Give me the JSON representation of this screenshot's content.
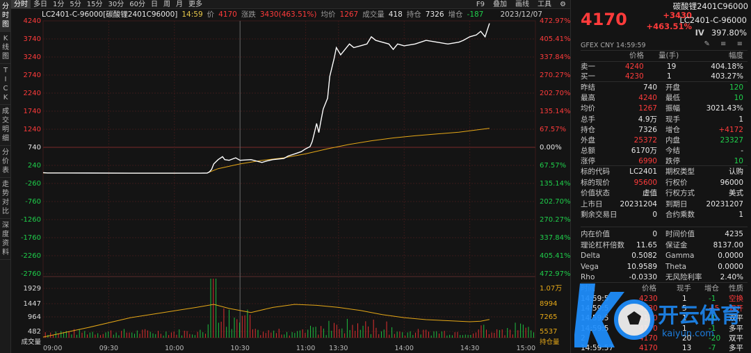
{
  "left_bar": [
    "分时图",
    "K线图",
    "TICK",
    "成交明细",
    "分价表",
    "走势对比",
    "深度资料"
  ],
  "top_bar": {
    "periods": [
      "分时",
      "多日",
      "1分",
      "5分",
      "15分",
      "30分",
      "60分",
      "日",
      "周",
      "月",
      "更多"
    ],
    "active": "分时",
    "right_items": [
      "F9",
      "叠加",
      "画线",
      "工具",
      "⚙"
    ]
  },
  "info_line": {
    "name": "LC2401-C-96000[碳酸锂2401C96000]",
    "time": "14:59",
    "price_label": "价",
    "price": "4170",
    "change_label": "涨跌",
    "change": "3430(463.51%)",
    "avg_label": "均价",
    "avg": "1267",
    "volume_label": "成交量",
    "volume": "418",
    "oi_label": "持仓",
    "oi": "7326",
    "oi_chg_label": "增仓",
    "oi_chg": "-187",
    "date": "2023/12/07"
  },
  "chart_data": {
    "type": "line",
    "price_axis_left": [
      "4240",
      "3740",
      "3240",
      "2740",
      "2240",
      "1740",
      "1240",
      "740",
      "240",
      "-260",
      "-760",
      "-1260",
      "-1760",
      "-2260",
      "-2760"
    ],
    "price_axis_right": [
      "472.97%",
      "405.41%",
      "337.84%",
      "270.27%",
      "202.70%",
      "135.14%",
      "67.57%",
      "0.00%",
      "67.57%",
      "135.14%",
      "202.70%",
      "270.27%",
      "337.84%",
      "405.41%",
      "472.97%"
    ],
    "price_axis_right_colors": [
      "red",
      "red",
      "red",
      "red",
      "red",
      "red",
      "red",
      "white",
      "green",
      "green",
      "green",
      "green",
      "green",
      "green",
      "green"
    ],
    "volume_axis_left": [
      "1929",
      "1447",
      "964",
      "482"
    ],
    "volume_axis_left_label": "成交量",
    "volume_axis_right": [
      "1.07万",
      "8994",
      "7265",
      "5537"
    ],
    "volume_axis_right_label": "持仓量",
    "time_labels": [
      "09:00",
      "09:30",
      "10:00",
      "10:30",
      "11:00",
      "13:30",
      "14:00",
      "14:30",
      "15:00"
    ],
    "ylim": [
      -2760,
      4240
    ],
    "prev_close": 740,
    "price_series": [
      [
        0,
        40
      ],
      [
        2,
        30
      ],
      [
        10,
        30
      ],
      [
        40,
        25
      ],
      [
        60,
        25
      ],
      [
        70,
        25
      ],
      [
        72,
        25
      ],
      [
        75,
        28
      ],
      [
        76,
        60
      ],
      [
        77,
        130
      ],
      [
        78,
        280
      ],
      [
        80,
        400
      ],
      [
        82,
        480
      ],
      [
        83,
        400
      ],
      [
        85,
        380
      ],
      [
        88,
        450
      ],
      [
        90,
        380
      ],
      [
        95,
        400
      ],
      [
        100,
        320
      ],
      [
        102,
        360
      ],
      [
        105,
        400
      ],
      [
        110,
        430
      ],
      [
        112,
        500
      ],
      [
        115,
        560
      ],
      [
        118,
        620
      ],
      [
        120,
        700
      ],
      [
        122,
        760
      ],
      [
        123,
        900
      ],
      [
        124,
        1150
      ],
      [
        125,
        1400
      ],
      [
        126,
        1150
      ],
      [
        127,
        1480
      ],
      [
        128,
        1800
      ],
      [
        130,
        2100
      ],
      [
        131,
        2700
      ],
      [
        133,
        3200
      ],
      [
        134,
        3500
      ],
      [
        136,
        3300
      ],
      [
        138,
        3450
      ],
      [
        140,
        3600
      ],
      [
        142,
        3500
      ],
      [
        145,
        3550
      ],
      [
        148,
        3600
      ],
      [
        150,
        3800
      ],
      [
        152,
        3700
      ],
      [
        155,
        3650
      ],
      [
        158,
        3600
      ],
      [
        160,
        3450
      ],
      [
        162,
        3600
      ],
      [
        165,
        3550
      ],
      [
        170,
        3600
      ],
      [
        175,
        3700
      ],
      [
        180,
        3650
      ],
      [
        185,
        3600
      ],
      [
        190,
        3650
      ],
      [
        192,
        3700
      ],
      [
        195,
        3800
      ],
      [
        198,
        3850
      ],
      [
        200,
        3950
      ],
      [
        202,
        3800
      ],
      [
        204,
        4170
      ]
    ],
    "avg_series": [
      [
        0,
        30
      ],
      [
        60,
        25
      ],
      [
        75,
        30
      ],
      [
        80,
        150
      ],
      [
        90,
        280
      ],
      [
        100,
        380
      ],
      [
        110,
        450
      ],
      [
        120,
        560
      ],
      [
        130,
        700
      ],
      [
        140,
        820
      ],
      [
        150,
        920
      ],
      [
        160,
        1000
      ],
      [
        170,
        1060
      ],
      [
        180,
        1110
      ],
      [
        190,
        1160
      ],
      [
        204,
        1267
      ]
    ],
    "oi_series": [
      [
        0,
        5600
      ],
      [
        20,
        6500
      ],
      [
        40,
        7500
      ],
      [
        55,
        8000
      ],
      [
        70,
        8500
      ],
      [
        78,
        8800
      ],
      [
        85,
        8400
      ],
      [
        95,
        8000
      ],
      [
        105,
        8500
      ],
      [
        115,
        8800
      ],
      [
        125,
        8700
      ],
      [
        135,
        8500
      ],
      [
        145,
        8200
      ],
      [
        155,
        7800
      ],
      [
        165,
        7500
      ],
      [
        175,
        7300
      ],
      [
        185,
        7200
      ],
      [
        195,
        7100
      ],
      [
        200,
        7150
      ],
      [
        204,
        7326
      ]
    ],
    "colors": {
      "price": "#ffffff",
      "avg": "#e6a817",
      "oi": "#e6a817"
    }
  },
  "quote": {
    "title": "碳酸锂2401C96000",
    "price": "4170",
    "change": "+3430",
    "change_pct": "+463.51%",
    "code": "LC2401-C-96000",
    "iv_label": "IV",
    "iv": "397.80%",
    "sub": "GFEX CNY 14:59:59",
    "sub_icons": "✎ ≡ ≡",
    "book_headers": [
      "价格",
      "量(手)",
      "幅度"
    ],
    "book": [
      {
        "label": "卖一",
        "price": "4240",
        "qty": "19",
        "pct": "404.18%"
      },
      {
        "label": "买一",
        "price": "4230",
        "qty": "1",
        "pct": "403.27%"
      }
    ],
    "stats": [
      [
        "昨结",
        "740",
        "white",
        "开盘",
        "120",
        "green"
      ],
      [
        "最高",
        "4240",
        "red",
        "最低",
        "10",
        "green"
      ],
      [
        "均价",
        "1267",
        "red",
        "振幅",
        "3021.43%",
        "white"
      ],
      [
        "总手",
        "4.9万",
        "white",
        "现手",
        "1",
        "white"
      ],
      [
        "持仓",
        "7326",
        "white",
        "增仓",
        "+4172",
        "red"
      ],
      [
        "外盘",
        "25372",
        "red",
        "内盘",
        "23327",
        "green"
      ],
      [
        "总额",
        "6170万",
        "white",
        "今结",
        "-",
        "white"
      ],
      [
        "涨停",
        "6990",
        "red",
        "跌停",
        "10",
        "green"
      ]
    ],
    "contract": [
      [
        "标的代码",
        "LC2401",
        "white",
        "期权类型",
        "认购",
        "white"
      ],
      [
        "标的现价",
        "95600",
        "red",
        "行权价",
        "96000",
        "white"
      ],
      [
        "价值状态",
        "虚值",
        "white",
        "行权方式",
        "美式",
        "white"
      ],
      [
        "上市日",
        "20231204",
        "white",
        "到期日",
        "20231207",
        "white"
      ],
      [
        "剩余交易日",
        "0",
        "white",
        "合约乘数",
        "1",
        "white"
      ]
    ],
    "greeks": [
      [
        "内在价值",
        "0",
        "white",
        "时间价值",
        "4235",
        "white"
      ],
      [
        "理论杠杆倍数",
        "11.65",
        "white",
        "保证金",
        "8137.00",
        "white"
      ],
      [
        "Delta",
        "0.5082",
        "white",
        "Gamma",
        "0.0000",
        "white"
      ],
      [
        "Vega",
        "10.9589",
        "white",
        "Theta",
        "0.0000",
        "white"
      ],
      [
        "Rho",
        "-0.0330",
        "white",
        "无风险利率",
        "2.40%",
        "white"
      ]
    ],
    "tick_headers": [
      "时间",
      "价格",
      "现手",
      "增仓",
      "性质"
    ],
    "ticks": [
      [
        "14:59:5",
        "4230",
        "1",
        "-1",
        "空换"
      ],
      [
        "14:59:5",
        "4230",
        "5",
        "+5",
        "双开"
      ],
      [
        "14:59:5",
        "4170",
        "1",
        "-1",
        "双平"
      ],
      [
        "14:59:5",
        "4170",
        "1",
        "-1",
        "多平"
      ],
      [
        "2",
        "4170",
        "20",
        "-20",
        "双平"
      ],
      [
        "14:59:57",
        "4170",
        "13",
        "-7",
        "多平"
      ]
    ]
  },
  "watermark": {
    "brand": "开云体育",
    "url": "kaiyun.com"
  }
}
